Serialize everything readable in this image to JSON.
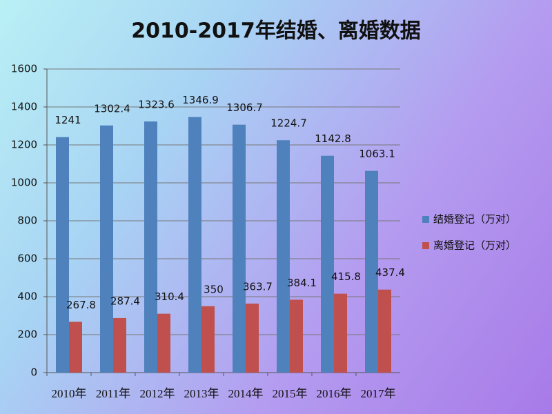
{
  "chart_data": {
    "type": "bar",
    "title": "2010-2017年结婚、离婚数据",
    "categories": [
      "2010年",
      "2011年",
      "2012年",
      "2013年",
      "2014年",
      "2015年",
      "2016年",
      "2017年"
    ],
    "series": [
      {
        "name": "结婚登记（万对）",
        "color": "#4f81bd",
        "values": [
          1241,
          1302.4,
          1323.6,
          1346.9,
          1306.7,
          1224.7,
          1142.8,
          1063.1
        ]
      },
      {
        "name": "离婚登记（万对）",
        "color": "#c0504d",
        "values": [
          267.8,
          287.4,
          310.4,
          350,
          363.7,
          384.1,
          415.8,
          437.4
        ]
      }
    ],
    "ylim": [
      0,
      1600
    ],
    "yticks": [
      0,
      200,
      400,
      600,
      800,
      1000,
      1200,
      1400,
      1600
    ],
    "grid": true,
    "legend": "right"
  }
}
